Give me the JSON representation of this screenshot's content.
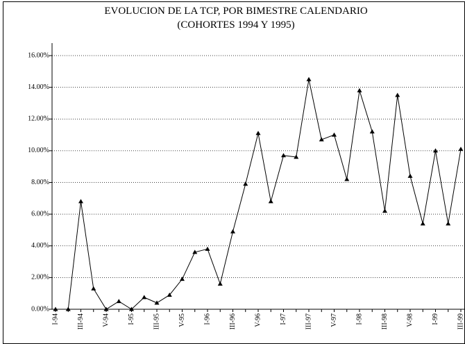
{
  "chart_data": {
    "type": "line",
    "title": "EVOLUCION DE LA TCP, POR BIMESTRE CALENDARIO",
    "subtitle": "(COHORTES 1994 Y 1995)",
    "categories": [
      "I-94",
      null,
      "III-94",
      null,
      "V-94",
      null,
      "I-95",
      null,
      "III-95",
      null,
      "V-95",
      null,
      "I-96",
      null,
      "III-96",
      null,
      "V-96",
      null,
      "I-97",
      null,
      "III-97",
      null,
      "V-97",
      null,
      "I-98",
      null,
      "III-98",
      null,
      "V-98",
      null,
      "I-99",
      null,
      "III-99"
    ],
    "series": [
      {
        "name": "TCP",
        "color": "#000000",
        "values": [
          0,
          0,
          6.8,
          1.3,
          0,
          0.5,
          0,
          0.75,
          0.4,
          0.9,
          1.9,
          3.6,
          3.8,
          1.6,
          4.9,
          7.9,
          11.1,
          6.8,
          9.7,
          9.6,
          14.5,
          10.7,
          11.0,
          8.2,
          13.8,
          11.2,
          6.2,
          13.5,
          8.4,
          5.4,
          10.0,
          5.4,
          10.1
        ]
      }
    ],
    "ylim": [
      0,
      16
    ],
    "yticks": [
      {
        "value": 0,
        "label": "0.00%"
      },
      {
        "value": 2,
        "label": "2.00%"
      },
      {
        "value": 4,
        "label": "4.00%"
      },
      {
        "value": 6,
        "label": "6.00%"
      },
      {
        "value": 8,
        "label": "8.00%"
      },
      {
        "value": 10,
        "label": "10.00%"
      },
      {
        "value": 12,
        "label": "12.00%"
      },
      {
        "value": 14,
        "label": "14.00%"
      },
      {
        "value": 16,
        "label": "16.00%"
      }
    ],
    "grid": true
  }
}
